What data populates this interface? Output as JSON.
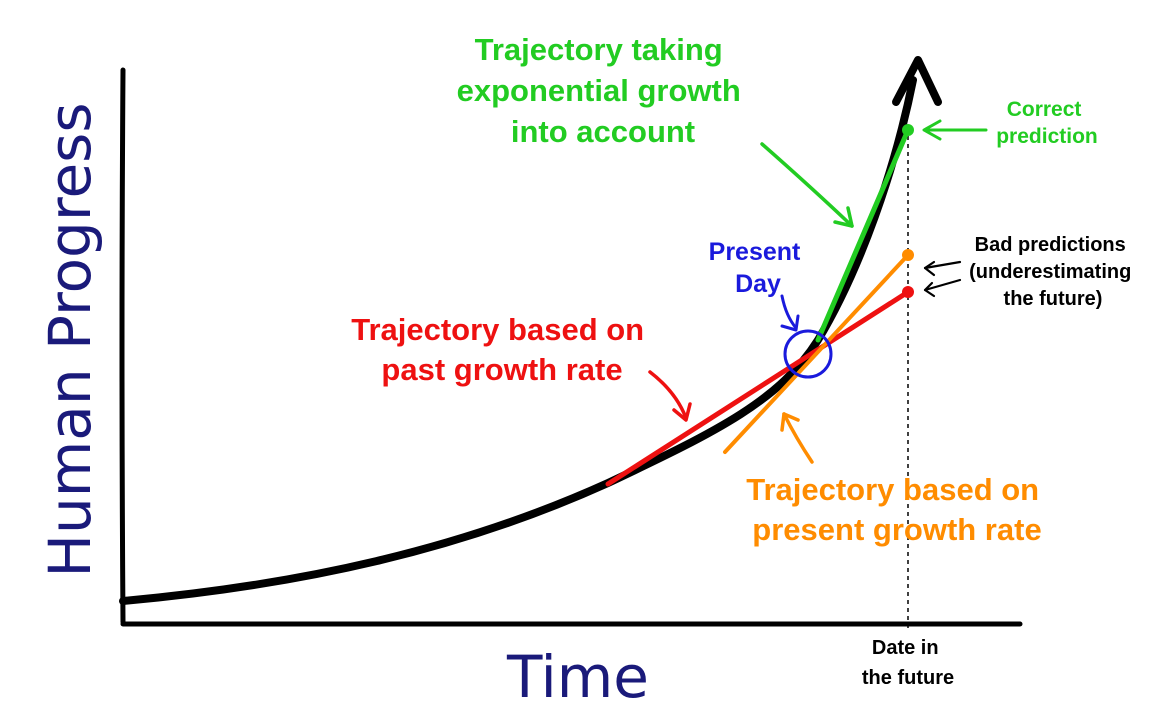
{
  "axes": {
    "y_label": "Human Progress",
    "x_label": "Time",
    "future_tick_lines": [
      "Date in",
      "the future"
    ]
  },
  "labels": {
    "exponential": [
      "Trajectory taking",
      "exponential growth",
      "into account"
    ],
    "present_day": [
      "Present",
      "Day"
    ],
    "past_rate": [
      "Trajectory based on",
      "past growth rate"
    ],
    "present_rate": [
      "Trajectory based on",
      "present growth rate"
    ],
    "correct": [
      "Correct",
      "prediction"
    ],
    "bad": [
      "Bad predictions",
      "(underestimating",
      "the future)"
    ]
  },
  "colors": {
    "curve": "#000000",
    "exponential": "#22cc22",
    "present_day": "#1a1adc",
    "past": "#ee1111",
    "present_rate": "#ff8c00",
    "axis_title": "#1a1a7a"
  }
}
